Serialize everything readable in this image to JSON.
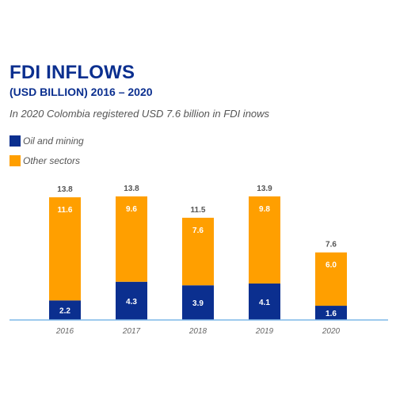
{
  "title": "FDI INFLOWS",
  "subtitle": "(USD BILLION) 2016 – 2020",
  "caption": "In 2020 Colombia registered USD 7.6 billion in FDI inows",
  "colors": {
    "title": "#0b2f8f",
    "oil": "#0b2f8f",
    "other": "#ff9f00",
    "axis": "#7fb8e8"
  },
  "chart_data": {
    "type": "bar",
    "stacked": true,
    "categories": [
      "2016",
      "2017",
      "2018",
      "2019",
      "2020"
    ],
    "series": [
      {
        "name": "Oil and mining",
        "values": [
          2.2,
          4.3,
          3.9,
          4.1,
          1.6
        ],
        "labels": [
          "2.2",
          "4.3",
          "3.9",
          "4.1",
          "1.6"
        ]
      },
      {
        "name": "Other sectors",
        "values": [
          11.6,
          9.6,
          7.6,
          9.8,
          6.0
        ],
        "labels": [
          "11.6",
          "9.6",
          "7.6",
          "9.8",
          "6.0"
        ]
      }
    ],
    "totals": [
      13.8,
      13.8,
      11.5,
      13.9,
      7.6
    ],
    "total_labels": [
      "13.8",
      "13.8",
      "11.5",
      "13.9",
      "7.6"
    ],
    "ylim": [
      0,
      13.9
    ],
    "grid": false,
    "legend": "top-left"
  }
}
